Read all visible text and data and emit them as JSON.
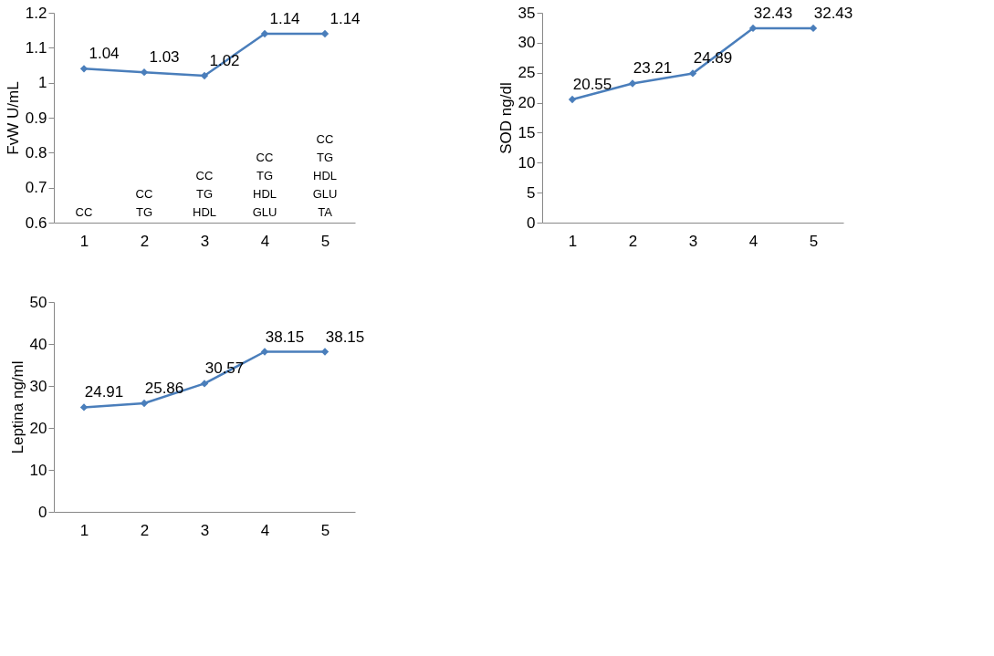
{
  "chart_data": [
    {
      "type": "line",
      "categories": [
        "1",
        "2",
        "3",
        "4",
        "5"
      ],
      "ylabel": "FvW U/mL",
      "ylim": [
        0.6,
        1.2
      ],
      "yticks": [
        0.6,
        0.7,
        0.8,
        0.9,
        1,
        1.1,
        1.2
      ],
      "grid": false,
      "marker": "diamond",
      "line_style": "solid",
      "data_labels": true,
      "series": [
        {
          "color": "#4a7ebb",
          "values": [
            1.04,
            1.03,
            1.02,
            1.14,
            1.14
          ]
        }
      ],
      "annotations": [
        "CC",
        "CC\nTG",
        "CC\nTG\nHDL",
        "CC\nTG\nHDL\nGLU",
        "CC\nTG\nHDL\nGLU\nTA"
      ]
    },
    {
      "type": "line",
      "categories": [
        "1",
        "2",
        "3",
        "4",
        "5"
      ],
      "ylabel": "SOD  ng/dl",
      "ylim": [
        0,
        35
      ],
      "yticks": [
        0,
        5,
        10,
        15,
        20,
        25,
        30,
        35
      ],
      "grid": false,
      "marker": "diamond",
      "line_style": "solid",
      "data_labels": true,
      "series": [
        {
          "color": "#4a7ebb",
          "values": [
            20.55,
            23.21,
            24.89,
            32.43,
            32.43
          ]
        }
      ]
    },
    {
      "type": "line",
      "categories": [
        "1",
        "2",
        "3",
        "4",
        "5"
      ],
      "ylabel": "Leptina ng/ml",
      "ylim": [
        0,
        50
      ],
      "yticks": [
        0,
        10,
        20,
        30,
        40,
        50
      ],
      "grid": false,
      "marker": "diamond",
      "line_style": "solid",
      "data_labels": true,
      "series": [
        {
          "color": "#4a7ebb",
          "values": [
            24.91,
            25.86,
            30.57,
            38.15,
            38.15
          ]
        }
      ]
    }
  ]
}
